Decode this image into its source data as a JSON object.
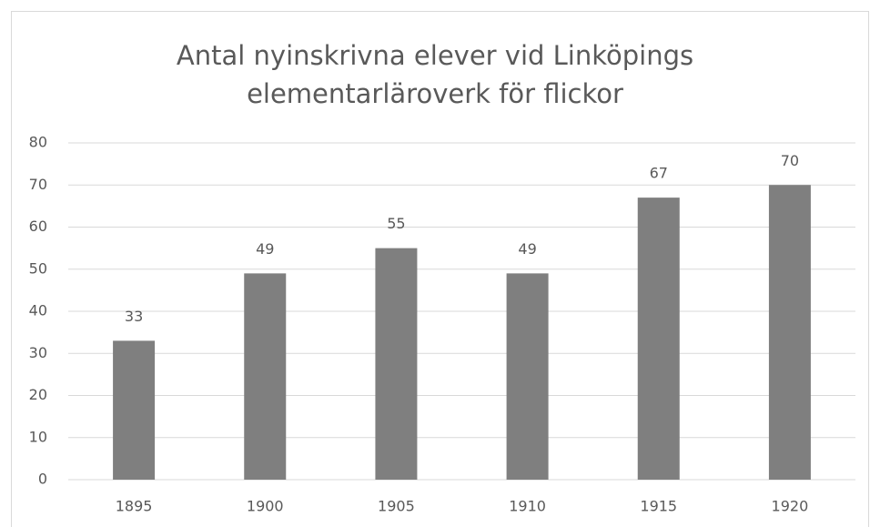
{
  "chart_data": {
    "type": "bar",
    "title": "Antal nyinskrivna elever vid Linköpings elementarläroverk för flickor",
    "categories": [
      "1895",
      "1900",
      "1905",
      "1910",
      "1915",
      "1920"
    ],
    "values": [
      33,
      49,
      55,
      49,
      67,
      70
    ],
    "color": "#7f7f7f",
    "ylim": [
      0,
      80
    ],
    "yticks": [
      0,
      10,
      20,
      30,
      40,
      50,
      60,
      70,
      80
    ],
    "grid": true,
    "data_labels": true
  }
}
